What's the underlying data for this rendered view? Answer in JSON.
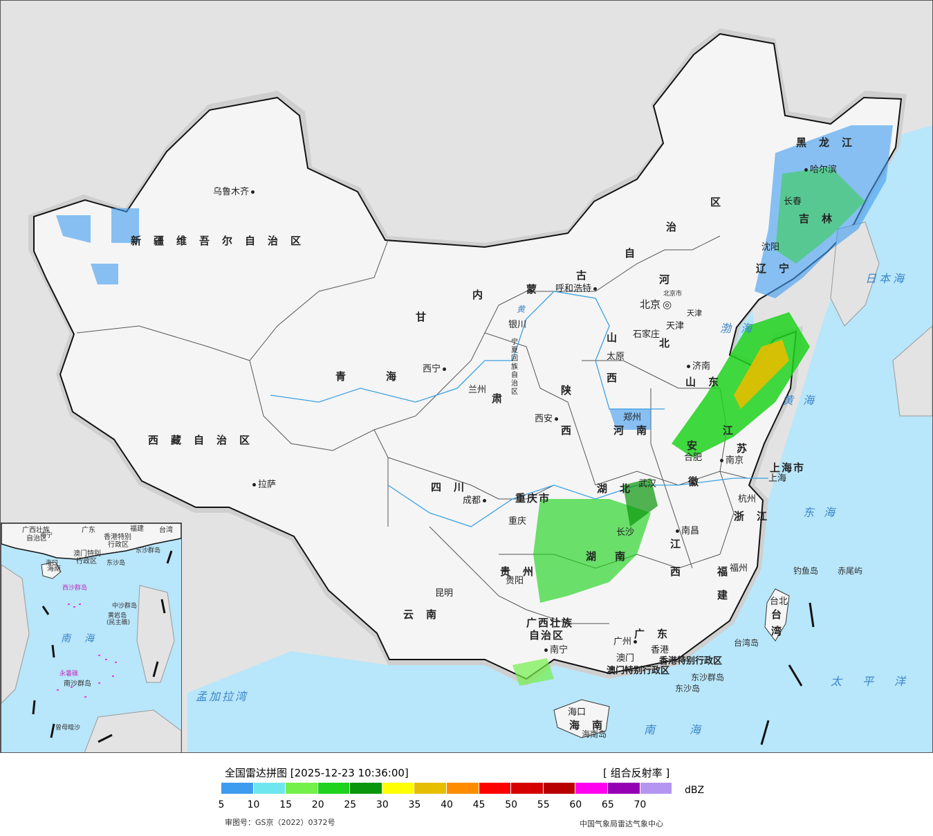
{
  "map": {
    "provinces": [
      {
        "key": "xinjiang",
        "text": "新疆维吾尔自治区"
      },
      {
        "key": "xizang",
        "text": "西藏自治区"
      },
      {
        "key": "qinghai1",
        "text": "青"
      },
      {
        "key": "qinghai2",
        "text": "海"
      },
      {
        "key": "gansu1",
        "text": "甘"
      },
      {
        "key": "gansu2",
        "text": "肃"
      },
      {
        "key": "neimenggu1",
        "text": "内"
      },
      {
        "key": "neimenggu2",
        "text": "蒙"
      },
      {
        "key": "neimenggu3",
        "text": "古"
      },
      {
        "key": "neimenggu4",
        "text": "自"
      },
      {
        "key": "neimenggu5",
        "text": "治"
      },
      {
        "key": "neimenggu6",
        "text": "区"
      },
      {
        "key": "heilongjiang",
        "text": "黑龙江"
      },
      {
        "key": "jilin",
        "text": "吉林"
      },
      {
        "key": "liaoning",
        "text": "辽宁"
      },
      {
        "key": "hebei1",
        "text": "河"
      },
      {
        "key": "hebei2",
        "text": "北"
      },
      {
        "key": "shanxi1",
        "text": "山"
      },
      {
        "key": "shanxi2",
        "text": "西"
      },
      {
        "key": "shaanxi1",
        "text": "陕"
      },
      {
        "key": "shaanxi2",
        "text": "西"
      },
      {
        "key": "shandong",
        "text": "山东"
      },
      {
        "key": "henan",
        "text": "河南"
      },
      {
        "key": "jiangsu1",
        "text": "江"
      },
      {
        "key": "jiangsu2",
        "text": "苏"
      },
      {
        "key": "anhui1",
        "text": "安"
      },
      {
        "key": "anhui2",
        "text": "徽"
      },
      {
        "key": "hubei",
        "text": "湖北"
      },
      {
        "key": "hunan1",
        "text": "湖"
      },
      {
        "key": "hunan2",
        "text": "南"
      },
      {
        "key": "sichuan",
        "text": "四川"
      },
      {
        "key": "chongqing",
        "text": "重庆市"
      },
      {
        "key": "guizhou",
        "text": "贵州"
      },
      {
        "key": "yunnan",
        "text": "云南"
      },
      {
        "key": "guangxi1",
        "text": "广西壮族"
      },
      {
        "key": "guangxi2",
        "text": "自治区"
      },
      {
        "key": "guangdong",
        "text": "广东"
      },
      {
        "key": "jiangxi1",
        "text": "江"
      },
      {
        "key": "jiangxi2",
        "text": "西"
      },
      {
        "key": "zhejiang",
        "text": "浙江"
      },
      {
        "key": "fujian1",
        "text": "福"
      },
      {
        "key": "fujian2",
        "text": "建"
      },
      {
        "key": "taiwan1",
        "text": "台"
      },
      {
        "key": "taiwan2",
        "text": "湾"
      },
      {
        "key": "hainan",
        "text": "海南"
      },
      {
        "key": "shanghai",
        "text": "上海市"
      },
      {
        "key": "ningxia",
        "text": "宁夏回族自治区"
      },
      {
        "key": "hk",
        "text": "香港特别行政区"
      },
      {
        "key": "macau",
        "text": "澳门特别行政区"
      }
    ],
    "cities": [
      {
        "key": "urumqi",
        "text": "乌鲁木齐"
      },
      {
        "key": "lhasa",
        "text": "拉萨"
      },
      {
        "key": "xining",
        "text": "西宁"
      },
      {
        "key": "lanzhou",
        "text": "兰州"
      },
      {
        "key": "yinchuan",
        "text": "银川"
      },
      {
        "key": "hohhot",
        "text": "呼和浩特"
      },
      {
        "key": "beijing",
        "text": "北京"
      },
      {
        "key": "beijingshi",
        "text": "北京市"
      },
      {
        "key": "tianjin",
        "text": "天津"
      },
      {
        "key": "tianjinshi",
        "text": "天津"
      },
      {
        "key": "shijiazhuang",
        "text": "石家庄"
      },
      {
        "key": "taiyuan",
        "text": "太原"
      },
      {
        "key": "jinan",
        "text": "济南"
      },
      {
        "key": "zhengzhou",
        "text": "郑州"
      },
      {
        "key": "xian",
        "text": "西安"
      },
      {
        "key": "hefei",
        "text": "合肥"
      },
      {
        "key": "nanjing",
        "text": "南京"
      },
      {
        "key": "shanghaicity",
        "text": "上海"
      },
      {
        "key": "hangzhou",
        "text": "杭州"
      },
      {
        "key": "wuhan",
        "text": "武汉"
      },
      {
        "key": "changsha",
        "text": "长沙"
      },
      {
        "key": "nanchang",
        "text": "南昌"
      },
      {
        "key": "fuzhou",
        "text": "福州"
      },
      {
        "key": "taipei",
        "text": "台北"
      },
      {
        "key": "chengdu",
        "text": "成都"
      },
      {
        "key": "chongqingcity",
        "text": "重庆"
      },
      {
        "key": "guiyang",
        "text": "贵阳"
      },
      {
        "key": "kunming",
        "text": "昆明"
      },
      {
        "key": "nanning",
        "text": "南宁"
      },
      {
        "key": "guangzhou",
        "text": "广州"
      },
      {
        "key": "hongkong",
        "text": "香港"
      },
      {
        "key": "macao",
        "text": "澳门"
      },
      {
        "key": "haikou",
        "text": "海口"
      },
      {
        "key": "harbin",
        "text": "哈尔滨"
      },
      {
        "key": "changchun",
        "text": "长春"
      },
      {
        "key": "shenyang",
        "text": "沈阳"
      }
    ],
    "seas": [
      {
        "key": "bohai",
        "text": "渤海"
      },
      {
        "key": "huanghai",
        "text": "黄海"
      },
      {
        "key": "donghai",
        "text": "东海"
      },
      {
        "key": "nanhai",
        "text": "南海"
      },
      {
        "key": "riben",
        "text": "日本海"
      },
      {
        "key": "taipingyang",
        "text": "太平洋"
      },
      {
        "key": "mengjiala",
        "text": "孟加拉湾"
      }
    ],
    "islands": [
      {
        "key": "diaoyu",
        "text": "钓鱼岛"
      },
      {
        "key": "chiwei",
        "text": "赤尾屿"
      },
      {
        "key": "taiwandao",
        "text": "台湾岛"
      },
      {
        "key": "dongsha",
        "text": "东沙群岛"
      },
      {
        "key": "dongshadao",
        "text": "东沙岛"
      },
      {
        "key": "hainandao",
        "text": "海南岛"
      },
      {
        "key": "huang",
        "text": "黄"
      }
    ],
    "inset_labels": [
      {
        "key": "i_gx",
        "text": "广西壮族"
      },
      {
        "key": "i_gx2",
        "text": "自治区"
      },
      {
        "key": "i_gd",
        "text": "广东"
      },
      {
        "key": "i_fj",
        "text": "福建"
      },
      {
        "key": "i_tw",
        "text": "台湾"
      },
      {
        "key": "i_hk",
        "text": "香港特别"
      },
      {
        "key": "i_hk2",
        "text": "行政区"
      },
      {
        "key": "i_mo",
        "text": "澳门特别"
      },
      {
        "key": "i_mo2",
        "text": "行政区"
      },
      {
        "key": "i_dsqd",
        "text": "东沙群岛"
      },
      {
        "key": "i_dsd",
        "text": "东沙岛"
      },
      {
        "key": "i_hn",
        "text": "海南"
      },
      {
        "key": "i_xs",
        "text": "西沙群岛"
      },
      {
        "key": "i_zsqd",
        "text": "中沙群岛"
      },
      {
        "key": "i_hyd",
        "text": "黄岩岛"
      },
      {
        "key": "i_mzd",
        "text": "(民主礁)"
      },
      {
        "key": "i_nh",
        "text": "南海"
      },
      {
        "key": "i_nsqd",
        "text": "南沙群岛"
      },
      {
        "key": "i_ysj",
        "text": "永暑礁"
      },
      {
        "key": "i_zmas",
        "text": "曾母暗沙"
      },
      {
        "key": "i_nk",
        "text": "南宁"
      },
      {
        "key": "i_hk3",
        "text": "海口"
      }
    ]
  },
  "legend": {
    "title": "全国雷达拼图 [2025-12-23 10:36:00]",
    "product": "[ 组合反射率 ]",
    "unit": "dBZ",
    "colors": [
      "#3d9bf0",
      "#6ee6f0",
      "#74f04a",
      "#1ed21e",
      "#0a960a",
      "#ffff00",
      "#e6be00",
      "#ff8c00",
      "#ff0000",
      "#d70000",
      "#b90000",
      "#ff00f0",
      "#9600b4",
      "#b496f0"
    ],
    "ticks": [
      "5",
      "10",
      "15",
      "20",
      "25",
      "30",
      "35",
      "40",
      "45",
      "50",
      "55",
      "60",
      "65",
      "70"
    ],
    "approval": "审图号：GS京（2022）0372号",
    "credit": "中国气象局雷达气象中心"
  },
  "colors": {
    "ocean": "#b8e6fa",
    "land": "#f7f7f7",
    "foreign": "#e3e3e3",
    "border": "#111111",
    "river": "#3aa0e0"
  }
}
